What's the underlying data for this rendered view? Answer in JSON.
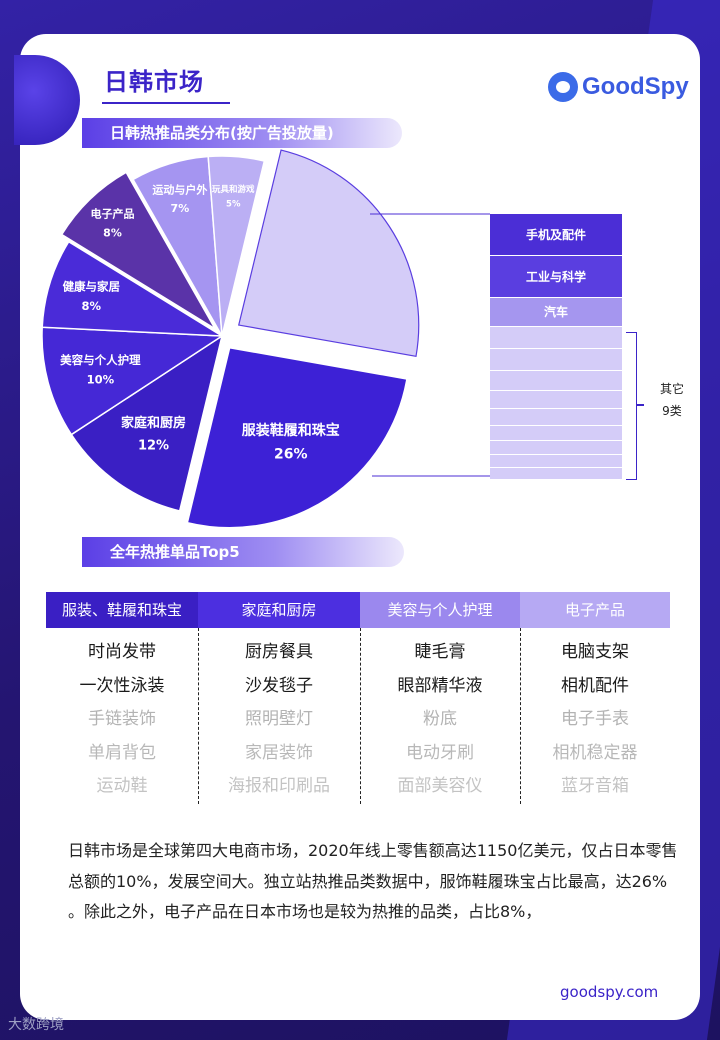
{
  "page": {
    "title": "日韩市场",
    "brand": "GoodSpy",
    "section1_title": "日韩热推品类分布(按广告投放量)",
    "section2_title": "全年热推单品Top5",
    "website": "goodspy.com",
    "watermark": "大数跨境"
  },
  "chart_data": {
    "type": "pie",
    "title": "日韩热推品类分布(按广告投放量)",
    "slices": [
      {
        "label": "服装鞋履和珠宝",
        "value": 26,
        "value_label": "26%",
        "color": "#3d21d6"
      },
      {
        "label": "家庭和厨房",
        "value": 12,
        "value_label": "12%",
        "color": "#3a1fc4"
      },
      {
        "label": "美容与个人护理",
        "value": 10,
        "value_label": "10%",
        "color": "#4528d6"
      },
      {
        "label": "健康与家居",
        "value": 8,
        "value_label": "8%",
        "color": "#4a2bd8"
      },
      {
        "label": "电子产品",
        "value": 8,
        "value_label": "8%",
        "color": "#5a33a8"
      },
      {
        "label": "运动与户外",
        "value": 7,
        "value_label": "7%",
        "color": "#a595f1"
      },
      {
        "label": "玩具和游戏",
        "value": 5,
        "value_label": "5%",
        "color": "#bbaff4"
      },
      {
        "label": "其它",
        "value": 24,
        "value_label": "",
        "color": "#d4ccf8"
      }
    ],
    "breakdown": {
      "labels": [
        "手机及配件",
        "工业与科学",
        "汽车"
      ],
      "others_label": "其它",
      "others_count": "9类"
    }
  },
  "table": {
    "columns": [
      {
        "header": "服装、鞋履和珠宝",
        "items": [
          "时尚发带",
          "一次性泳装",
          "手链装饰",
          "单肩背包",
          "运动鞋"
        ],
        "color": "#3a1fc4"
      },
      {
        "header": "家庭和厨房",
        "items": [
          "厨房餐具",
          "沙发毯子",
          "照明壁灯",
          "家居装饰",
          "海报和印刷品"
        ],
        "color": "#4c2fe0"
      },
      {
        "header": "美容与个人护理",
        "items": [
          "睫毛膏",
          "眼部精华液",
          "粉底",
          "电动牙刷",
          "面部美容仪"
        ],
        "color": "#9b88ee"
      },
      {
        "header": "电子产品",
        "items": [
          "电脑支架",
          "相机配件",
          "电子手表",
          "相机稳定器",
          "蓝牙音箱"
        ],
        "color": "#b6a9f3"
      }
    ]
  },
  "description": "日韩市场是全球第四大电商市场，2020年线上零售额高达1150亿美元，仅占日本零售总额的10%，发展空间大。独立站热推品类数据中，服饰鞋履珠宝占比最高，达26% 。除此之外，电子产品在日本市场也是较为热推的品类，占比8%，"
}
